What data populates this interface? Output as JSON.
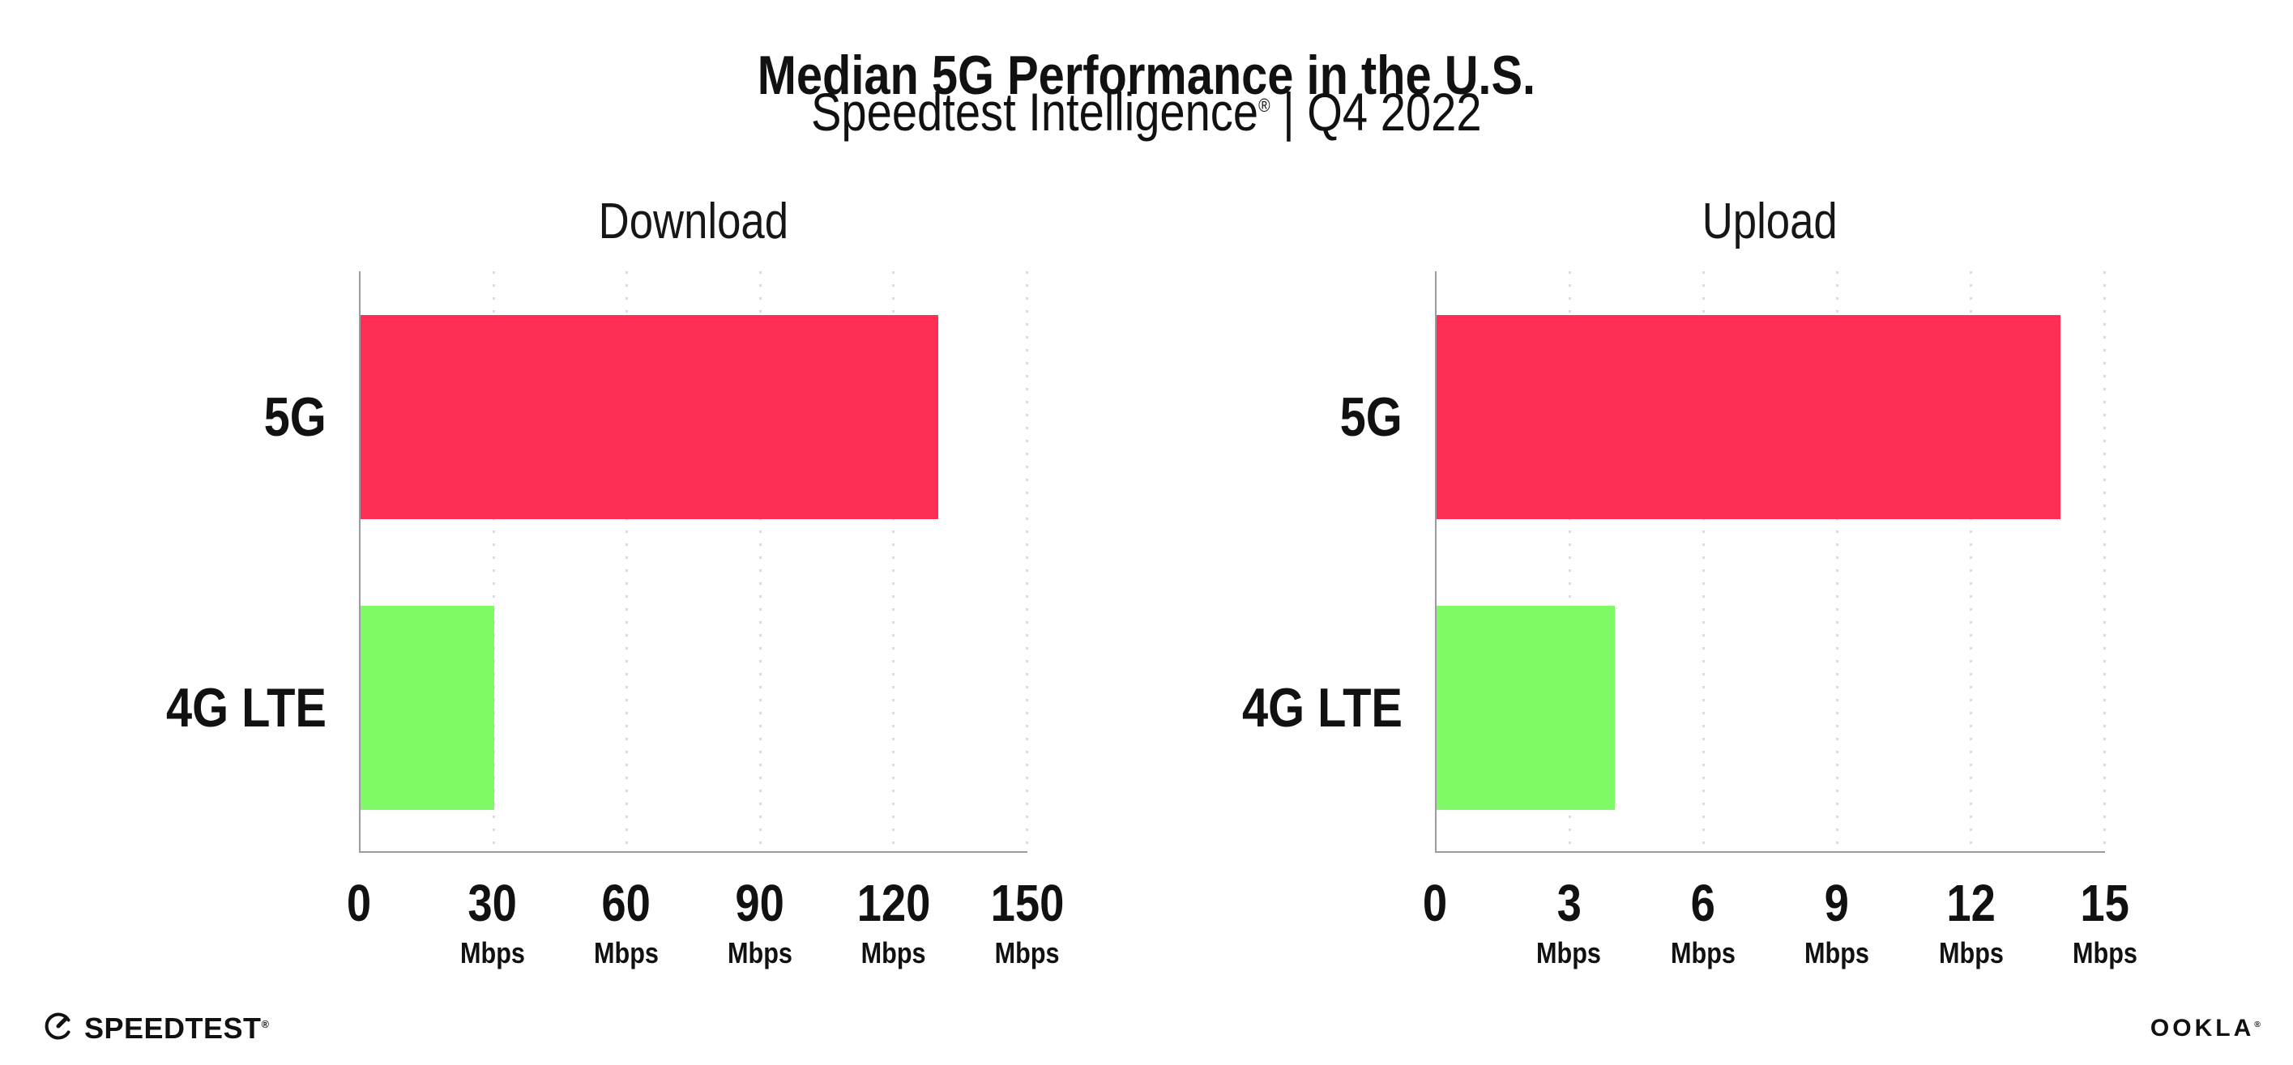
{
  "header": {
    "title": "Median 5G Performance in the U.S.",
    "subtitle_brand": "Speedtest Intelligence",
    "subtitle_reg": "®",
    "subtitle_rest": "| Q4 2022"
  },
  "chart_data": [
    {
      "type": "bar",
      "orientation": "horizontal",
      "title": "Download",
      "categories": [
        "5G",
        "4G LTE"
      ],
      "values": [
        130,
        30
      ],
      "unit": "Mbps",
      "xlim": [
        0,
        150
      ],
      "xticks": [
        0,
        30,
        60,
        90,
        120,
        150
      ],
      "tick_unit_label": "Mbps",
      "bar_colors": [
        "#FF2E55",
        "#7DFA66"
      ],
      "grid": "vertical-dotted",
      "legend": "none"
    },
    {
      "type": "bar",
      "orientation": "horizontal",
      "title": "Upload",
      "categories": [
        "5G",
        "4G LTE"
      ],
      "values": [
        14,
        4
      ],
      "unit": "Mbps",
      "xlim": [
        0,
        15
      ],
      "xticks": [
        0,
        3,
        6,
        9,
        12,
        15
      ],
      "tick_unit_label": "Mbps",
      "bar_colors": [
        "#FF2E55",
        "#7DFA66"
      ],
      "grid": "vertical-dotted",
      "legend": "none"
    }
  ],
  "footer": {
    "speedtest_label": "SPEEDTEST",
    "speedtest_mark": "®",
    "ookla_label": "OOKLA",
    "ookla_mark": "®"
  },
  "colors": {
    "bar_5g": "#FF2E55",
    "bar_4g_lte": "#7DFA66",
    "axis_line": "#9A9AA0",
    "grid_dot": "#DCDCE6",
    "text": "#111111",
    "background": "#FFFFFF"
  }
}
